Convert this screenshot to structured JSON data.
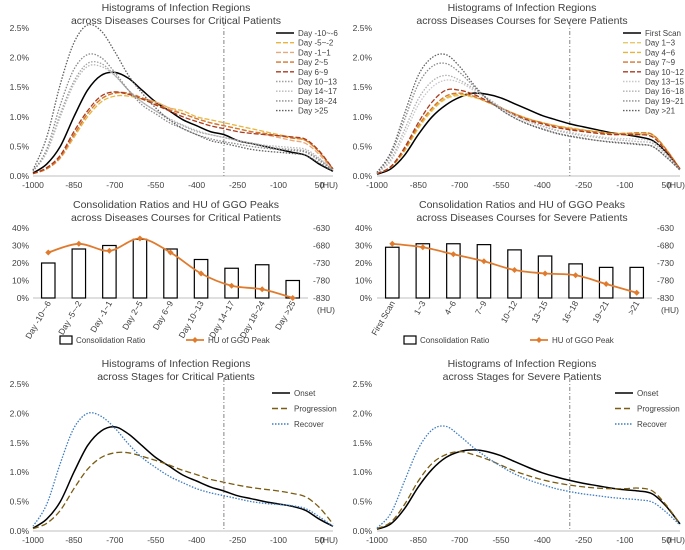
{
  "chart_data": [
    {
      "type": "line",
      "title": [
        "Histograms of Infection Regions",
        "across Diseases Courses for Critical Patients"
      ],
      "xlabel": "(HU)",
      "x_ticks": [
        -1000,
        -850,
        -700,
        -550,
        -400,
        -250,
        -100,
        50
      ],
      "y_ticks": [
        "0.0%",
        "0.5%",
        "1.0%",
        "1.5%",
        "2.0%",
        "2.5%"
      ],
      "xlim": [
        -1000,
        100
      ],
      "ylim": [
        0,
        2.5
      ],
      "vline_x": -300,
      "x": [
        -1000,
        -950,
        -900,
        -850,
        -800,
        -750,
        -700,
        -650,
        -600,
        -550,
        -500,
        -450,
        -400,
        -350,
        -300,
        -250,
        -200,
        -150,
        -100,
        -50,
        0,
        50,
        100
      ],
      "series": [
        {
          "name": "Day -10~-6",
          "color": "#000000",
          "dash": "",
          "values": [
            0.05,
            0.2,
            0.5,
            1.0,
            1.45,
            1.7,
            1.75,
            1.65,
            1.45,
            1.25,
            1.1,
            0.95,
            0.85,
            0.75,
            0.7,
            0.6,
            0.55,
            0.5,
            0.45,
            0.4,
            0.35,
            0.2,
            0.08
          ]
        },
        {
          "name": "Day -5~-2",
          "color": "#e8b43c",
          "dash": "5,2",
          "values": [
            0.04,
            0.12,
            0.3,
            0.65,
            1.0,
            1.25,
            1.35,
            1.35,
            1.3,
            1.25,
            1.15,
            1.1,
            1.0,
            0.95,
            0.9,
            0.85,
            0.8,
            0.75,
            0.7,
            0.65,
            0.6,
            0.4,
            0.12
          ]
        },
        {
          "name": "Day -1~1",
          "color": "#e8a87a",
          "dash": "5,2",
          "values": [
            0.04,
            0.12,
            0.3,
            0.68,
            1.05,
            1.3,
            1.4,
            1.38,
            1.32,
            1.25,
            1.15,
            1.05,
            0.97,
            0.9,
            0.85,
            0.8,
            0.75,
            0.7,
            0.65,
            0.6,
            0.55,
            0.36,
            0.1
          ]
        },
        {
          "name": "Day 2~5",
          "color": "#d4752b",
          "dash": "5,2",
          "values": [
            0.04,
            0.12,
            0.32,
            0.7,
            1.05,
            1.3,
            1.4,
            1.4,
            1.32,
            1.22,
            1.12,
            1.05,
            0.97,
            0.9,
            0.85,
            0.8,
            0.75,
            0.72,
            0.68,
            0.64,
            0.6,
            0.4,
            0.12
          ]
        },
        {
          "name": "Day 6~9",
          "color": "#a93a1e",
          "dash": "5,2",
          "values": [
            0.04,
            0.14,
            0.35,
            0.75,
            1.1,
            1.35,
            1.42,
            1.38,
            1.3,
            1.2,
            1.1,
            1.0,
            0.92,
            0.85,
            0.8,
            0.75,
            0.72,
            0.7,
            0.68,
            0.66,
            0.62,
            0.42,
            0.12
          ]
        },
        {
          "name": "Day 10~13",
          "color": "#a0a0a0",
          "dash": "1.5,1.5",
          "values": [
            0.08,
            0.4,
            1.05,
            1.6,
            1.9,
            1.9,
            1.7,
            1.45,
            1.25,
            1.1,
            0.95,
            0.85,
            0.75,
            0.7,
            0.65,
            0.6,
            0.55,
            0.5,
            0.47,
            0.45,
            0.42,
            0.28,
            0.1
          ]
        },
        {
          "name": "Day 14~17",
          "color": "#b8b8b8",
          "dash": "1.5,1.5",
          "values": [
            0.08,
            0.4,
            1.0,
            1.55,
            1.85,
            1.85,
            1.7,
            1.45,
            1.25,
            1.1,
            0.97,
            0.86,
            0.77,
            0.7,
            0.65,
            0.6,
            0.56,
            0.52,
            0.5,
            0.48,
            0.45,
            0.3,
            0.1
          ]
        },
        {
          "name": "Day 18~24",
          "color": "#8a8a8a",
          "dash": "1.5,1.5",
          "values": [
            0.08,
            0.45,
            1.2,
            1.8,
            2.05,
            2.0,
            1.75,
            1.45,
            1.2,
            1.05,
            0.9,
            0.8,
            0.7,
            0.63,
            0.58,
            0.54,
            0.5,
            0.47,
            0.45,
            0.43,
            0.4,
            0.26,
            0.1
          ]
        },
        {
          "name": "Day >25",
          "color": "#606060",
          "dash": "1.5,1.5",
          "values": [
            0.1,
            0.65,
            1.55,
            2.25,
            2.55,
            2.45,
            2.1,
            1.7,
            1.4,
            1.15,
            0.95,
            0.8,
            0.7,
            0.6,
            0.55,
            0.5,
            0.45,
            0.42,
            0.4,
            0.38,
            0.35,
            0.22,
            0.08
          ]
        }
      ]
    },
    {
      "type": "line",
      "title": [
        "Histograms of Infection Regions",
        "across Diseases Courses for Severe Patients"
      ],
      "xlabel": "(HU)",
      "x_ticks": [
        -1000,
        -850,
        -700,
        -550,
        -400,
        -250,
        -100,
        50
      ],
      "y_ticks": [
        "0.0%",
        "0.5%",
        "1.0%",
        "1.5%",
        "2.0%",
        "2.5%"
      ],
      "xlim": [
        -1000,
        100
      ],
      "ylim": [
        0,
        2.5
      ],
      "vline_x": -300,
      "x": [
        -1000,
        -950,
        -900,
        -850,
        -800,
        -750,
        -700,
        -650,
        -600,
        -550,
        -500,
        -450,
        -400,
        -350,
        -300,
        -250,
        -200,
        -150,
        -100,
        -50,
        0,
        50,
        100
      ],
      "series": [
        {
          "name": "First Scan",
          "color": "#000000",
          "dash": "",
          "values": [
            0.03,
            0.12,
            0.35,
            0.7,
            1.0,
            1.2,
            1.33,
            1.4,
            1.38,
            1.32,
            1.22,
            1.12,
            1.02,
            0.95,
            0.88,
            0.83,
            0.78,
            0.73,
            0.7,
            0.66,
            0.6,
            0.4,
            0.12
          ]
        },
        {
          "name": "Day 1~3",
          "color": "#e8c86a",
          "dash": "5,2",
          "values": [
            0.04,
            0.15,
            0.42,
            0.8,
            1.1,
            1.3,
            1.36,
            1.33,
            1.25,
            1.15,
            1.05,
            0.97,
            0.9,
            0.85,
            0.82,
            0.78,
            0.75,
            0.72,
            0.7,
            0.7,
            0.68,
            0.45,
            0.12
          ]
        },
        {
          "name": "Day 4~6",
          "color": "#e8b43c",
          "dash": "5,2",
          "values": [
            0.04,
            0.15,
            0.42,
            0.82,
            1.12,
            1.32,
            1.38,
            1.34,
            1.25,
            1.15,
            1.05,
            0.96,
            0.9,
            0.85,
            0.8,
            0.77,
            0.75,
            0.72,
            0.72,
            0.72,
            0.7,
            0.45,
            0.12
          ]
        },
        {
          "name": "Day 7~9",
          "color": "#d4752b",
          "dash": "5,2",
          "values": [
            0.04,
            0.15,
            0.45,
            0.85,
            1.15,
            1.35,
            1.4,
            1.35,
            1.25,
            1.15,
            1.05,
            0.96,
            0.9,
            0.84,
            0.8,
            0.77,
            0.74,
            0.72,
            0.72,
            0.73,
            0.7,
            0.45,
            0.12
          ]
        },
        {
          "name": "Day 10~12",
          "color": "#a93a1e",
          "dash": "5,2",
          "values": [
            0.04,
            0.16,
            0.48,
            0.9,
            1.25,
            1.45,
            1.45,
            1.38,
            1.27,
            1.15,
            1.03,
            0.94,
            0.88,
            0.82,
            0.78,
            0.75,
            0.72,
            0.7,
            0.7,
            0.7,
            0.66,
            0.42,
            0.12
          ]
        },
        {
          "name": "Day 13~15",
          "color": "#c8c8c8",
          "dash": "1.5,1.5",
          "values": [
            0.05,
            0.25,
            0.7,
            1.2,
            1.5,
            1.62,
            1.58,
            1.45,
            1.3,
            1.15,
            1.02,
            0.92,
            0.85,
            0.78,
            0.74,
            0.7,
            0.67,
            0.64,
            0.63,
            0.62,
            0.58,
            0.38,
            0.1
          ]
        },
        {
          "name": "Day 16~18",
          "color": "#b0b0b0",
          "dash": "1.5,1.5",
          "values": [
            0.05,
            0.28,
            0.78,
            1.3,
            1.6,
            1.7,
            1.62,
            1.48,
            1.32,
            1.16,
            1.02,
            0.92,
            0.84,
            0.77,
            0.72,
            0.68,
            0.65,
            0.62,
            0.6,
            0.58,
            0.55,
            0.36,
            0.1
          ]
        },
        {
          "name": "Day 19~21",
          "color": "#8a8a8a",
          "dash": "1.5,1.5",
          "values": [
            0.06,
            0.35,
            0.95,
            1.55,
            1.85,
            1.9,
            1.75,
            1.52,
            1.3,
            1.12,
            0.98,
            0.88,
            0.8,
            0.73,
            0.68,
            0.64,
            0.6,
            0.58,
            0.56,
            0.54,
            0.5,
            0.32,
            0.1
          ]
        },
        {
          "name": "Day >21",
          "color": "#606060",
          "dash": "1.5,1.5",
          "values": [
            0.06,
            0.4,
            1.05,
            1.7,
            2.0,
            2.05,
            1.85,
            1.55,
            1.3,
            1.12,
            0.98,
            0.87,
            0.79,
            0.72,
            0.67,
            0.63,
            0.6,
            0.57,
            0.55,
            0.53,
            0.5,
            0.32,
            0.1
          ]
        }
      ]
    },
    {
      "type": "bar",
      "title": [
        "Consolidation Ratios and HU of GGO Peaks",
        "across Diseases Courses for Critical Patients"
      ],
      "categories": [
        "Day -10~-6",
        "Day -5~-2",
        "Day -1~1",
        "Day 2~5",
        "Day 6~9",
        "Day 10~13",
        "Day 14~17",
        "Day 18~24",
        "Day >25"
      ],
      "bar_values": [
        20,
        28,
        30,
        33.5,
        28,
        22,
        17,
        19,
        10
      ],
      "line_values": [
        -700,
        -675,
        -695,
        -660,
        -700,
        -760,
        -795,
        -805,
        -830
      ],
      "left_ticks": [
        "0%",
        "10%",
        "20%",
        "30%",
        "40%"
      ],
      "left_ylim": [
        0,
        40
      ],
      "right_ticks": [
        "-630",
        "-680",
        "-730",
        "-780",
        "-830"
      ],
      "right_ylim": [
        -830,
        -630
      ],
      "right_unit": "(HU)",
      "legend": [
        "Consolidation Ratio",
        "HU of GGO Peak"
      ],
      "line_color": "#e07b2e"
    },
    {
      "type": "bar",
      "title": [
        "Consolidation Ratios and HU of GGO Peaks",
        "across Diseases Courses for Severe Patients"
      ],
      "categories": [
        "First Scan",
        "1~3",
        "4~6",
        "7~9",
        "10~12",
        "13~15",
        "16~18",
        "19~21",
        ">21"
      ],
      "bar_values": [
        29,
        31,
        31,
        30.5,
        27.5,
        24,
        19.5,
        17.5,
        17.5
      ],
      "line_values": [
        -675,
        -685,
        -705,
        -725,
        -750,
        -760,
        -765,
        -790,
        -815
      ],
      "left_ticks": [
        "0%",
        "10%",
        "20%",
        "30%",
        "40%"
      ],
      "left_ylim": [
        0,
        40
      ],
      "right_ticks": [
        "-630",
        "-680",
        "-730",
        "-780",
        "-830"
      ],
      "right_ylim": [
        -830,
        -630
      ],
      "right_unit": "(HU)",
      "legend": [
        "Consolidation Ratio",
        "HU of GGO Peak"
      ],
      "line_color": "#e07b2e"
    },
    {
      "type": "line",
      "title": [
        "Histograms of Infection Regions",
        "across Stages for Critical Patients"
      ],
      "xlabel": "(HU)",
      "x_ticks": [
        -1000,
        -850,
        -700,
        -550,
        -400,
        -250,
        -100,
        50
      ],
      "y_ticks": [
        "0.0%",
        "0.5%",
        "1.0%",
        "1.5%",
        "2.0%",
        "2.5%"
      ],
      "xlim": [
        -1000,
        100
      ],
      "ylim": [
        0,
        2.5
      ],
      "vline_x": -300,
      "x": [
        -1000,
        -950,
        -900,
        -850,
        -800,
        -750,
        -700,
        -650,
        -600,
        -550,
        -500,
        -450,
        -400,
        -350,
        -300,
        -250,
        -200,
        -150,
        -100,
        -50,
        0,
        50,
        100
      ],
      "series": [
        {
          "name": "Onset",
          "color": "#000000",
          "dash": "",
          "values": [
            0.05,
            0.2,
            0.5,
            1.0,
            1.45,
            1.7,
            1.77,
            1.65,
            1.45,
            1.25,
            1.1,
            0.95,
            0.85,
            0.75,
            0.68,
            0.6,
            0.55,
            0.5,
            0.46,
            0.42,
            0.35,
            0.2,
            0.08
          ]
        },
        {
          "name": "Progression",
          "color": "#7a5c12",
          "dash": "6,3",
          "values": [
            0.04,
            0.13,
            0.35,
            0.72,
            1.05,
            1.25,
            1.33,
            1.33,
            1.27,
            1.2,
            1.12,
            1.03,
            0.96,
            0.88,
            0.83,
            0.78,
            0.74,
            0.71,
            0.68,
            0.64,
            0.58,
            0.4,
            0.12
          ]
        },
        {
          "name": "Recover",
          "color": "#3e7cc2",
          "dash": "1.5,1.5",
          "values": [
            0.08,
            0.45,
            1.15,
            1.75,
            2.0,
            1.95,
            1.75,
            1.48,
            1.25,
            1.08,
            0.93,
            0.82,
            0.72,
            0.65,
            0.6,
            0.55,
            0.5,
            0.47,
            0.45,
            0.43,
            0.38,
            0.24,
            0.08
          ]
        }
      ]
    },
    {
      "type": "line",
      "title": [
        "Histograms of Infection Regions",
        "across Stages for Severe Patients"
      ],
      "xlabel": "(HU)",
      "x_ticks": [
        -1000,
        -850,
        -700,
        -550,
        -400,
        -250,
        -100,
        50
      ],
      "y_ticks": [
        "0.0%",
        "0.5%",
        "1.0%",
        "1.5%",
        "2.0%",
        "2.5%"
      ],
      "xlim": [
        -1000,
        100
      ],
      "ylim": [
        0,
        2.5
      ],
      "vline_x": -300,
      "x": [
        -1000,
        -950,
        -900,
        -850,
        -800,
        -750,
        -700,
        -650,
        -600,
        -550,
        -500,
        -450,
        -400,
        -350,
        -300,
        -250,
        -200,
        -150,
        -100,
        -50,
        0,
        50,
        100
      ],
      "series": [
        {
          "name": "Onset",
          "color": "#000000",
          "dash": "",
          "values": [
            0.03,
            0.12,
            0.38,
            0.75,
            1.05,
            1.25,
            1.35,
            1.38,
            1.35,
            1.28,
            1.18,
            1.08,
            0.99,
            0.92,
            0.86,
            0.81,
            0.77,
            0.73,
            0.7,
            0.68,
            0.63,
            0.42,
            0.12
          ]
        },
        {
          "name": "Progression",
          "color": "#7a5c12",
          "dash": "6,3",
          "values": [
            0.04,
            0.15,
            0.45,
            0.85,
            1.15,
            1.3,
            1.35,
            1.3,
            1.22,
            1.12,
            1.02,
            0.94,
            0.87,
            0.82,
            0.78,
            0.75,
            0.73,
            0.72,
            0.72,
            0.73,
            0.68,
            0.44,
            0.12
          ]
        },
        {
          "name": "Recover",
          "color": "#3e7cc2",
          "dash": "1.5,1.5",
          "values": [
            0.05,
            0.3,
            0.85,
            1.4,
            1.72,
            1.78,
            1.62,
            1.42,
            1.25,
            1.1,
            0.97,
            0.87,
            0.79,
            0.72,
            0.67,
            0.63,
            0.6,
            0.57,
            0.55,
            0.53,
            0.49,
            0.32,
            0.1
          ]
        }
      ]
    }
  ]
}
